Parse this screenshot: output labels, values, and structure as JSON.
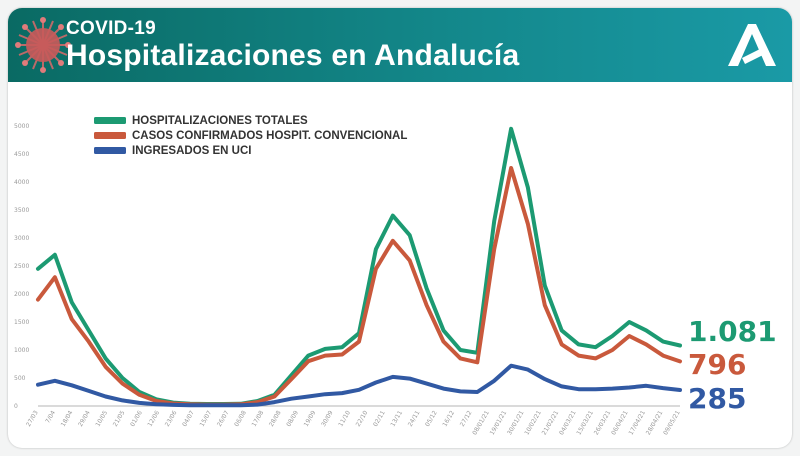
{
  "header": {
    "kicker": "COVID-19",
    "title": "Hospitalizaciones en Andalucía"
  },
  "colors": {
    "banner": "#0f7d7a",
    "total": "#1c9a72",
    "convencional": "#c9593c",
    "uci": "#3159a3",
    "axis": "#aaaaaa"
  },
  "icons": [
    "coronavirus-icon",
    "junta-andalucia-logo"
  ],
  "chart_data": {
    "type": "line",
    "title": "",
    "xlabel": "",
    "ylabel": "",
    "ylim": [
      0,
      5000
    ],
    "yticks": [
      0,
      500,
      1000,
      1500,
      2000,
      2500,
      3000,
      3500,
      4000,
      4500,
      5000
    ],
    "x_tick_labels": [
      "27/03",
      "7/04",
      "18/04",
      "29/04",
      "10/05",
      "21/05",
      "01/06",
      "12/06",
      "23/06",
      "04/07",
      "15/07",
      "26/07",
      "06/08",
      "17/08",
      "28/08",
      "08/09",
      "19/09",
      "30/09",
      "11/10",
      "22/10",
      "02/11",
      "13/11",
      "24/11",
      "05/12",
      "16/12",
      "27/12",
      "08/01/21",
      "19/01/21",
      "30/01/21",
      "10/02/21",
      "21/02/21",
      "04/03/21",
      "15/03/21",
      "26/03/21",
      "06/04/21",
      "17/04/21",
      "28/04/21",
      "09/05/21"
    ],
    "grid": false,
    "legend_position": "top-left",
    "series": [
      {
        "name": "HOSPITALIZACIONES TOTALES",
        "values": [
          2450,
          2700,
          1850,
          1350,
          850,
          500,
          250,
          120,
          60,
          40,
          35,
          35,
          40,
          90,
          200,
          550,
          900,
          1020,
          1050,
          1300,
          2800,
          3400,
          3050,
          2100,
          1350,
          1000,
          950,
          3300,
          4950,
          3900,
          2150,
          1350,
          1100,
          1050,
          1250,
          1500,
          1350,
          1150,
          1081
        ],
        "final_label": "1.081"
      },
      {
        "name": "CASOS CONFIRMADOS HOSPIT. CONVENCIONAL",
        "values": [
          1900,
          2300,
          1550,
          1150,
          700,
          400,
          200,
          90,
          45,
          30,
          25,
          25,
          30,
          70,
          170,
          480,
          800,
          900,
          920,
          1150,
          2450,
          2950,
          2600,
          1800,
          1150,
          850,
          780,
          2800,
          4250,
          3250,
          1800,
          1100,
          900,
          850,
          1000,
          1250,
          1100,
          900,
          796
        ],
        "final_label": "796"
      },
      {
        "name": "INGRESADOS EN UCI",
        "values": [
          380,
          450,
          370,
          270,
          170,
          100,
          55,
          30,
          20,
          15,
          12,
          12,
          15,
          25,
          70,
          130,
          170,
          210,
          230,
          290,
          420,
          520,
          490,
          400,
          310,
          260,
          250,
          450,
          720,
          650,
          480,
          350,
          300,
          300,
          310,
          330,
          360,
          320,
          285
        ],
        "final_label": "285"
      }
    ]
  }
}
